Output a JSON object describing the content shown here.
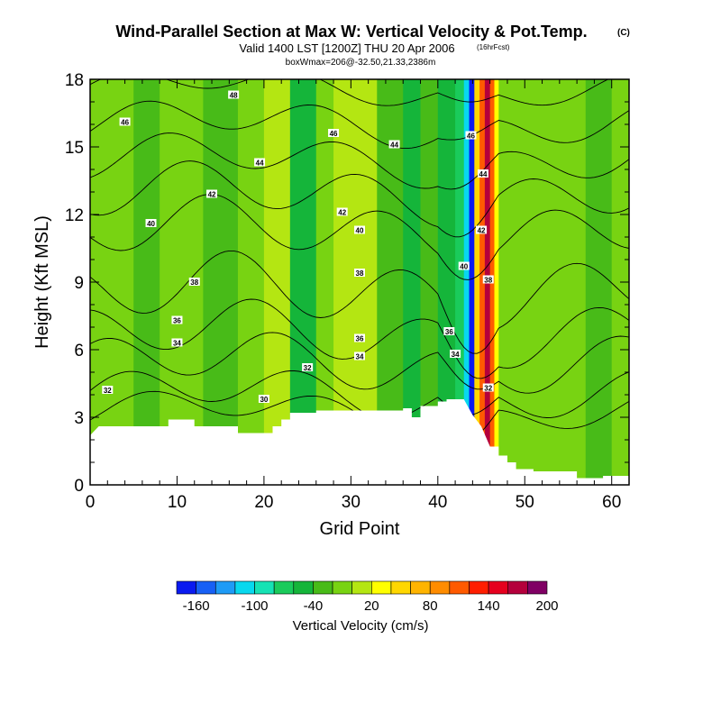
{
  "chart_data": {
    "type": "heatmap",
    "title": "Wind-Parallel Section at Max W: Vertical Velocity & Pot.Temp.",
    "title_units": "(C)",
    "subtitle": "Valid 1400 LST [1200Z] THU 20 Apr 2006",
    "subtitle_note": "(16hrFcst)",
    "subtitle2": "boxWmax=206@-32.50,21.33,2386m",
    "xlabel": "Grid Point",
    "ylabel": "Height (Kft MSL)",
    "xlim": [
      0,
      62
    ],
    "ylim": [
      0,
      18
    ],
    "x_ticks": [
      0,
      10,
      20,
      30,
      40,
      50,
      60
    ],
    "y_ticks": [
      0,
      3,
      6,
      9,
      12,
      15,
      18
    ],
    "colorbar": {
      "label": "Vertical Velocity (cm/s)",
      "tick_labels": [
        "-160",
        "-100",
        "-40",
        "20",
        "80",
        "140",
        "200"
      ],
      "colors": [
        "#0a1af0",
        "#1760f5",
        "#1e9bf6",
        "#08d8ee",
        "#16e2b4",
        "#1acb5b",
        "#15b53a",
        "#48bb18",
        "#78d312",
        "#b4e612",
        "#ffff00",
        "#ffd700",
        "#ffb400",
        "#ff8c00",
        "#ff5a00",
        "#ff1e00",
        "#e6001e",
        "#b4003c",
        "#800064"
      ]
    },
    "terrain_kft": [
      {
        "x": 0,
        "h": 2.2
      },
      {
        "x": 1,
        "h": 2.6
      },
      {
        "x": 9,
        "h": 2.6
      },
      {
        "x": 9,
        "h": 2.9
      },
      {
        "x": 12,
        "h": 2.9
      },
      {
        "x": 12,
        "h": 2.6
      },
      {
        "x": 17,
        "h": 2.6
      },
      {
        "x": 17,
        "h": 2.3
      },
      {
        "x": 21,
        "h": 2.3
      },
      {
        "x": 21,
        "h": 2.6
      },
      {
        "x": 22,
        "h": 2.6
      },
      {
        "x": 22,
        "h": 2.9
      },
      {
        "x": 23,
        "h": 2.9
      },
      {
        "x": 23,
        "h": 3.2
      },
      {
        "x": 26,
        "h": 3.2
      },
      {
        "x": 26,
        "h": 3.3
      },
      {
        "x": 36,
        "h": 3.3
      },
      {
        "x": 36,
        "h": 3.4
      },
      {
        "x": 37,
        "h": 3.4
      },
      {
        "x": 37,
        "h": 3.0
      },
      {
        "x": 38,
        "h": 3.0
      },
      {
        "x": 38,
        "h": 3.5
      },
      {
        "x": 40,
        "h": 3.5
      },
      {
        "x": 40,
        "h": 3.7
      },
      {
        "x": 41,
        "h": 3.7
      },
      {
        "x": 41,
        "h": 3.8
      },
      {
        "x": 43,
        "h": 3.8
      },
      {
        "x": 44,
        "h": 3.1
      },
      {
        "x": 45,
        "h": 2.6
      },
      {
        "x": 46,
        "h": 1.7
      },
      {
        "x": 47,
        "h": 1.7
      },
      {
        "x": 47,
        "h": 1.3
      },
      {
        "x": 48,
        "h": 1.3
      },
      {
        "x": 48,
        "h": 1.0
      },
      {
        "x": 49,
        "h": 1.0
      },
      {
        "x": 49,
        "h": 0.7
      },
      {
        "x": 51,
        "h": 0.7
      },
      {
        "x": 51,
        "h": 0.6
      },
      {
        "x": 56,
        "h": 0.6
      },
      {
        "x": 56,
        "h": 0.3
      },
      {
        "x": 59,
        "h": 0.3
      },
      {
        "x": 59,
        "h": 0.4
      },
      {
        "x": 62,
        "h": 0.4
      }
    ],
    "shading_bands": [
      {
        "x0": 0,
        "x1": 2,
        "w": -10
      },
      {
        "x0": 2,
        "x1": 5,
        "w": 5
      },
      {
        "x0": 5,
        "x1": 8,
        "w": -30
      },
      {
        "x0": 8,
        "x1": 11,
        "w": -10
      },
      {
        "x0": 11,
        "x1": 13,
        "w": 5
      },
      {
        "x0": 13,
        "x1": 17,
        "w": -25
      },
      {
        "x0": 17,
        "x1": 20,
        "w": -10
      },
      {
        "x0": 20,
        "x1": 23,
        "w": 10
      },
      {
        "x0": 23,
        "x1": 26,
        "w": -35
      },
      {
        "x0": 26,
        "x1": 28,
        "w": -10
      },
      {
        "x0": 28,
        "x1": 29,
        "w": 10
      },
      {
        "x0": 29,
        "x1": 31,
        "w": 25
      },
      {
        "x0": 31,
        "x1": 33,
        "w": 15
      },
      {
        "x0": 33,
        "x1": 36,
        "w": -30
      },
      {
        "x0": 36,
        "x1": 38,
        "w": -50
      },
      {
        "x0": 38,
        "x1": 40,
        "w": -20
      },
      {
        "x0": 40,
        "x1": 42,
        "w": -45
      },
      {
        "x0": 42,
        "x1": 43,
        "w": -70
      },
      {
        "x0": 43,
        "x1": 43.6,
        "w": -110
      },
      {
        "x0": 43.6,
        "x1": 44.2,
        "w": -160
      },
      {
        "x0": 44.2,
        "x1": 44.8,
        "w": 60
      },
      {
        "x0": 44.8,
        "x1": 45.4,
        "w": 120
      },
      {
        "x0": 45.4,
        "x1": 46,
        "w": 185
      },
      {
        "x0": 46,
        "x1": 46.5,
        "w": 110
      },
      {
        "x0": 46.5,
        "x1": 47,
        "w": 40
      },
      {
        "x0": 47,
        "x1": 49,
        "w": 0
      },
      {
        "x0": 49,
        "x1": 53,
        "w": -10
      },
      {
        "x0": 53,
        "x1": 57,
        "w": 5
      },
      {
        "x0": 57,
        "x1": 60,
        "w": -30
      },
      {
        "x0": 60,
        "x1": 62,
        "w": 0
      }
    ],
    "contours": [
      {
        "level": 30,
        "base": 3.2,
        "amp": 0.6
      },
      {
        "level": 32,
        "base": 4.0,
        "amp": 0.8
      },
      {
        "level": 34,
        "base": 5.4,
        "amp": 1.0
      },
      {
        "level": 36,
        "base": 6.7,
        "amp": 1.1
      },
      {
        "level": 38,
        "base": 8.6,
        "amp": 1.3
      },
      {
        "level": 40,
        "base": 11.3,
        "amp": 1.1
      },
      {
        "level": 42,
        "base": 12.9,
        "amp": 1.0
      },
      {
        "level": 44,
        "base": 14.4,
        "amp": 0.8
      },
      {
        "level": 46,
        "base": 16.0,
        "amp": 0.7
      },
      {
        "level": 48,
        "base": 17.6,
        "amp": 0.5
      }
    ],
    "contour_labels": [
      {
        "text": "48",
        "x": 16.5,
        "y": 17.3
      },
      {
        "text": "46",
        "x": 4,
        "y": 16.1
      },
      {
        "text": "46",
        "x": 28,
        "y": 15.6
      },
      {
        "text": "44",
        "x": 35,
        "y": 15.1
      },
      {
        "text": "46",
        "x": 43.8,
        "y": 15.5
      },
      {
        "text": "44",
        "x": 19.5,
        "y": 14.3
      },
      {
        "text": "42",
        "x": 14,
        "y": 12.9
      },
      {
        "text": "44",
        "x": 45.2,
        "y": 13.8
      },
      {
        "text": "42",
        "x": 29,
        "y": 12.1
      },
      {
        "text": "40",
        "x": 7,
        "y": 11.6
      },
      {
        "text": "40",
        "x": 31,
        "y": 11.3
      },
      {
        "text": "42",
        "x": 45,
        "y": 11.3
      },
      {
        "text": "40",
        "x": 43,
        "y": 9.7
      },
      {
        "text": "38",
        "x": 31,
        "y": 9.4
      },
      {
        "text": "38",
        "x": 12,
        "y": 9.0
      },
      {
        "text": "38",
        "x": 45.8,
        "y": 9.1
      },
      {
        "text": "36",
        "x": 10,
        "y": 7.3
      },
      {
        "text": "36",
        "x": 41.3,
        "y": 6.8
      },
      {
        "text": "36",
        "x": 31,
        "y": 6.5
      },
      {
        "text": "34",
        "x": 10,
        "y": 6.3
      },
      {
        "text": "34",
        "x": 42,
        "y": 5.8
      },
      {
        "text": "34",
        "x": 31,
        "y": 5.7
      },
      {
        "text": "32",
        "x": 25,
        "y": 5.2
      },
      {
        "text": "32",
        "x": 45.8,
        "y": 4.3
      },
      {
        "text": "32",
        "x": 2,
        "y": 4.2
      },
      {
        "text": "30",
        "x": 20,
        "y": 3.8
      }
    ]
  }
}
